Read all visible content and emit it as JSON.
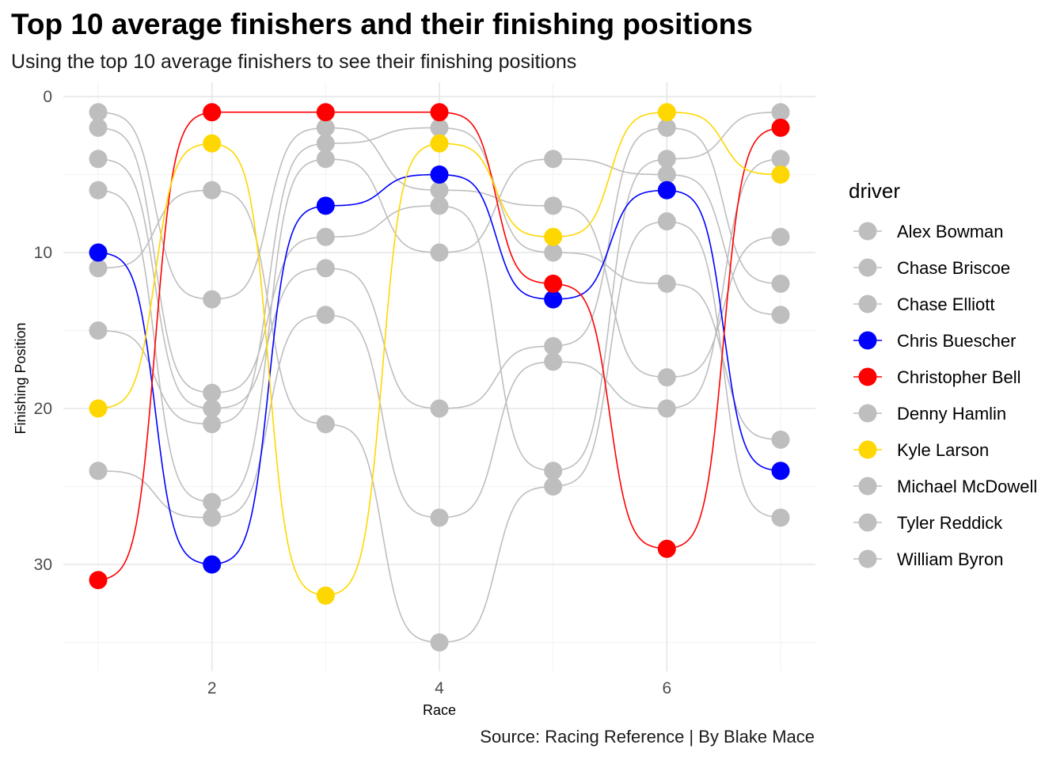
{
  "title": "Top 10 average finishers and their finishing positions",
  "subtitle": "Using the top 10 average finishers to see their finishing positions",
  "caption": "Source: Racing Reference | By Blake Mace",
  "chart_data": {
    "type": "line",
    "style": "bump chart with points, y axis reversed",
    "xlabel": "Race",
    "ylabel": "Finishing Position",
    "xlim": [
      1,
      7
    ],
    "ylim": [
      36,
      0
    ],
    "x_ticks": [
      "2",
      "4",
      "6"
    ],
    "y_ticks": [
      "0",
      "10",
      "20",
      "30"
    ],
    "grid": true,
    "legend": {
      "title": "driver",
      "position": "right"
    },
    "x": [
      1,
      2,
      3,
      4,
      5,
      6,
      7
    ],
    "series": [
      {
        "name": "Alex Bowman",
        "color": "#bebebe",
        "values": [
          1,
          13,
          2,
          6,
          7,
          18,
          9
        ]
      },
      {
        "name": "Chase Briscoe",
        "color": "#bebebe",
        "values": [
          2,
          19,
          9,
          7,
          24,
          4,
          1
        ]
      },
      {
        "name": "Chase Elliott",
        "color": "#bebebe",
        "values": [
          4,
          20,
          11,
          20,
          16,
          2,
          12
        ]
      },
      {
        "name": "Chris Buescher",
        "color": "#0000ff",
        "values": [
          10,
          30,
          7,
          5,
          13,
          6,
          24
        ]
      },
      {
        "name": "Christopher Bell",
        "color": "#ff0000",
        "values": [
          31,
          1,
          1,
          1,
          12,
          29,
          2
        ]
      },
      {
        "name": "Denny Hamlin",
        "color": "#bebebe",
        "values": [
          6,
          26,
          4,
          10,
          4,
          5,
          14
        ]
      },
      {
        "name": "Kyle Larson",
        "color": "#ffd700",
        "values": [
          20,
          3,
          32,
          3,
          9,
          1,
          5
        ]
      },
      {
        "name": "Michael McDowell",
        "color": "#bebebe",
        "values": [
          11,
          6,
          21,
          35,
          25,
          8,
          27
        ]
      },
      {
        "name": "Tyler Reddick",
        "color": "#bebebe",
        "values": [
          15,
          21,
          3,
          2,
          10,
          12,
          22
        ]
      },
      {
        "name": "William Byron",
        "color": "#bebebe",
        "values": [
          24,
          27,
          14,
          27,
          17,
          20,
          4
        ]
      }
    ]
  }
}
